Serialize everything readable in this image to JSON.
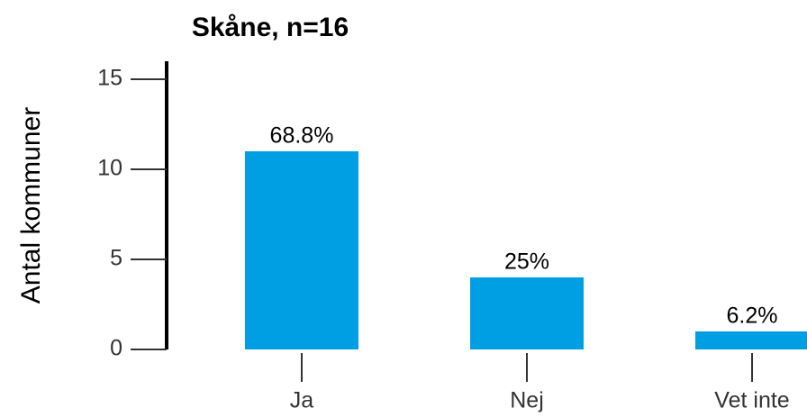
{
  "chart_data": {
    "type": "bar",
    "title": "Skåne, n=16",
    "y_label": "Antal kommuner",
    "categories": [
      "Ja",
      "Nej",
      "Vet inte"
    ],
    "values": [
      11,
      4,
      1
    ],
    "value_labels": [
      "68.8%",
      "25%",
      "6.2%"
    ],
    "color": "#009fe3",
    "ylim": [
      0,
      16
    ],
    "yticks": [
      0,
      5,
      10,
      15
    ]
  }
}
